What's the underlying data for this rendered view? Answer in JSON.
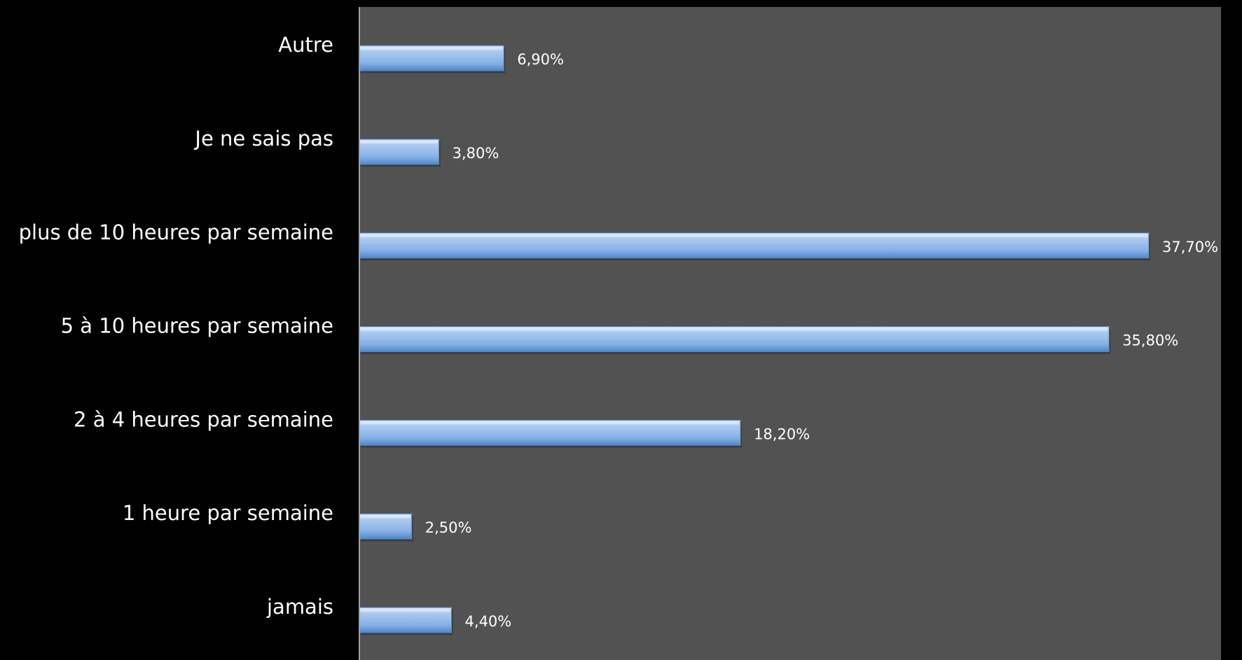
{
  "chart_data": {
    "type": "bar",
    "orientation": "horizontal",
    "categories": [
      "jamais",
      "1 heure par semaine",
      "2 à 4 heures par semaine",
      "5 à 10 heures par semaine",
      "plus de 10 heures par semaine",
      "Je ne sais pas",
      "Autre"
    ],
    "values": [
      4.4,
      2.5,
      18.2,
      35.8,
      37.7,
      3.8,
      6.9
    ],
    "value_labels": [
      "4,40%",
      "2,50%",
      "18,20%",
      "35,80%",
      "37,70%",
      "3,80%",
      "6,90%"
    ],
    "unit": "%",
    "xlim": [
      0,
      40
    ],
    "grid": false,
    "legend": "none",
    "title": "",
    "xlabel": "",
    "ylabel": ""
  },
  "colors": {
    "background": "#000000",
    "plot_area": "#525252",
    "axis_line": "#a0a0a0",
    "bar_top": "#c9ddf5",
    "bar_mid": "#8cb6e9",
    "bar_bottom": "#4e86c8",
    "text": "#ffffff"
  }
}
